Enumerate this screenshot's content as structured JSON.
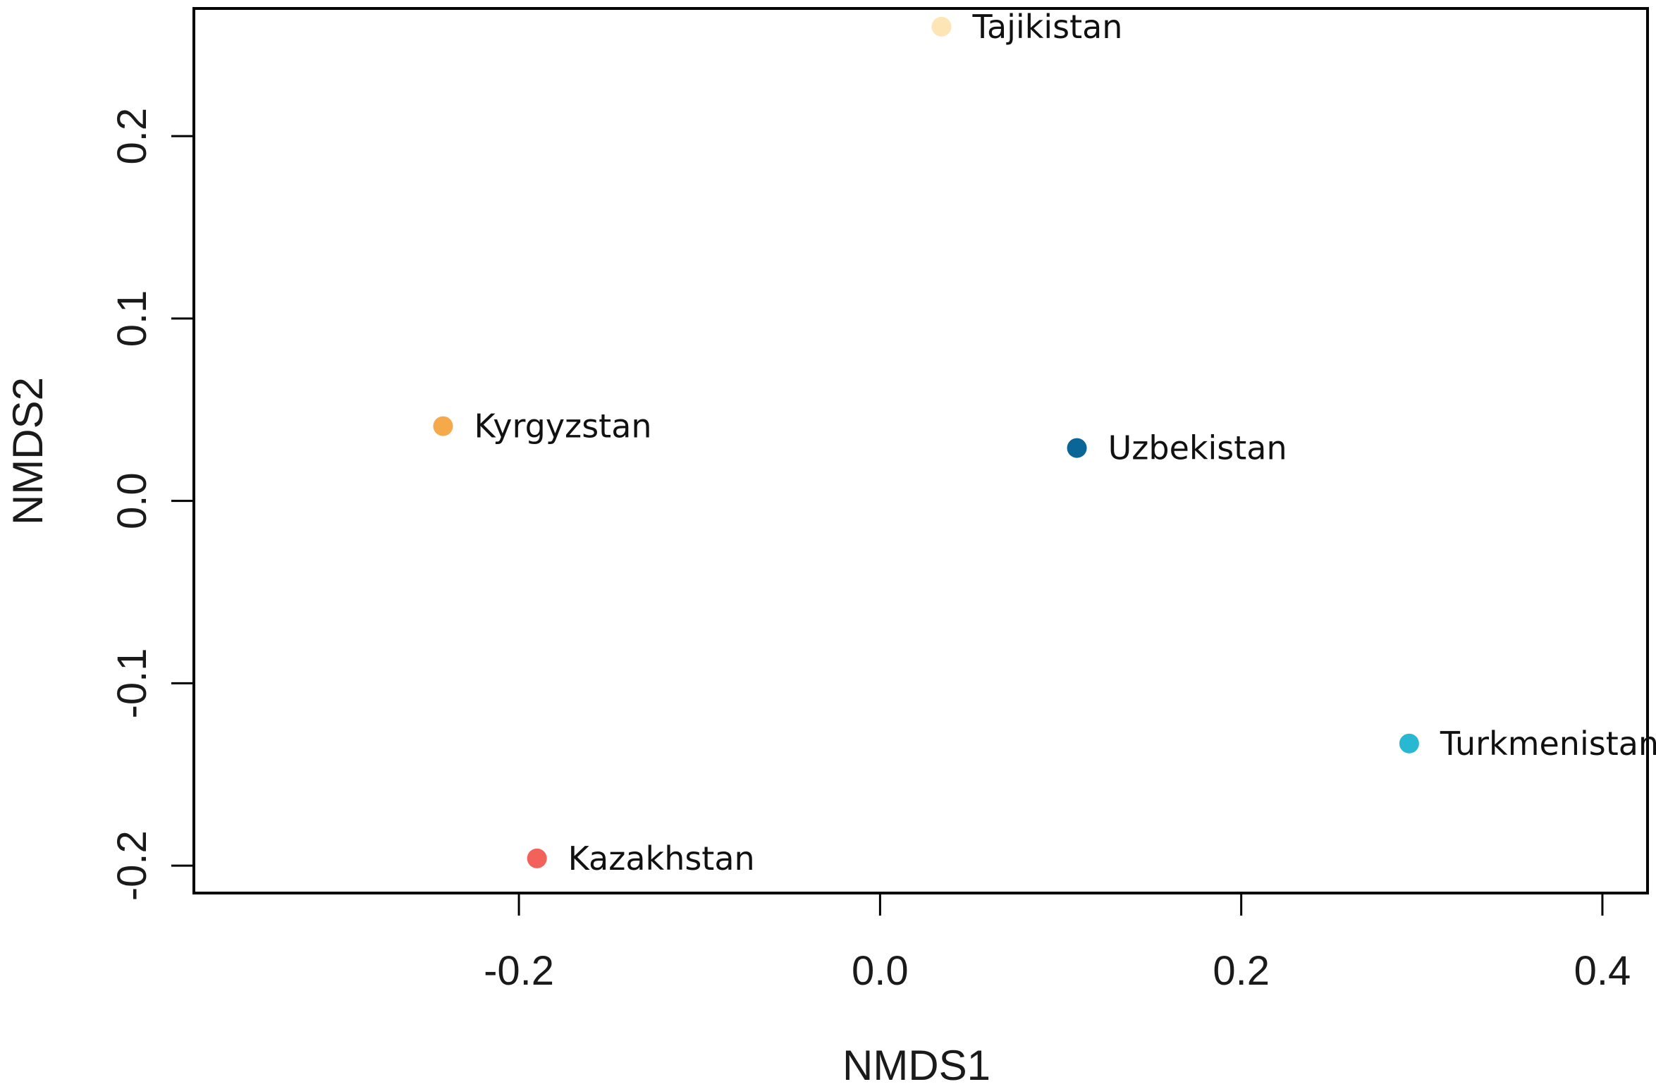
{
  "chart_data": {
    "type": "scatter",
    "title": "",
    "xlabel": "NMDS1",
    "ylabel": "NMDS2",
    "xlim": [
      -0.38,
      0.425
    ],
    "ylim": [
      -0.215,
      0.27
    ],
    "x_ticks": [
      {
        "value": -0.2,
        "label": "-0.2"
      },
      {
        "value": 0.0,
        "label": "0.0"
      },
      {
        "value": 0.2,
        "label": "0.2"
      },
      {
        "value": 0.4,
        "label": "0.4"
      }
    ],
    "y_ticks": [
      {
        "value": -0.2,
        "label": "-0.2"
      },
      {
        "value": -0.1,
        "label": "-0.1"
      },
      {
        "value": 0.0,
        "label": "0.0"
      },
      {
        "value": 0.1,
        "label": "0.1"
      },
      {
        "value": 0.2,
        "label": "0.2"
      }
    ],
    "grid": false,
    "legend": "none",
    "points": [
      {
        "label": "Tajikistan",
        "x": 0.034,
        "y": 0.26,
        "color": "#fde5b5"
      },
      {
        "label": "Kyrgyzstan",
        "x": -0.242,
        "y": 0.041,
        "color": "#f6a94b"
      },
      {
        "label": "Uzbekistan",
        "x": 0.109,
        "y": 0.029,
        "color": "#0b6596"
      },
      {
        "label": "Turkmenistan",
        "x": 0.293,
        "y": -0.133,
        "color": "#29b8d2"
      },
      {
        "label": "Kazakhstan",
        "x": -0.19,
        "y": -0.196,
        "color": "#f2615a"
      }
    ]
  }
}
